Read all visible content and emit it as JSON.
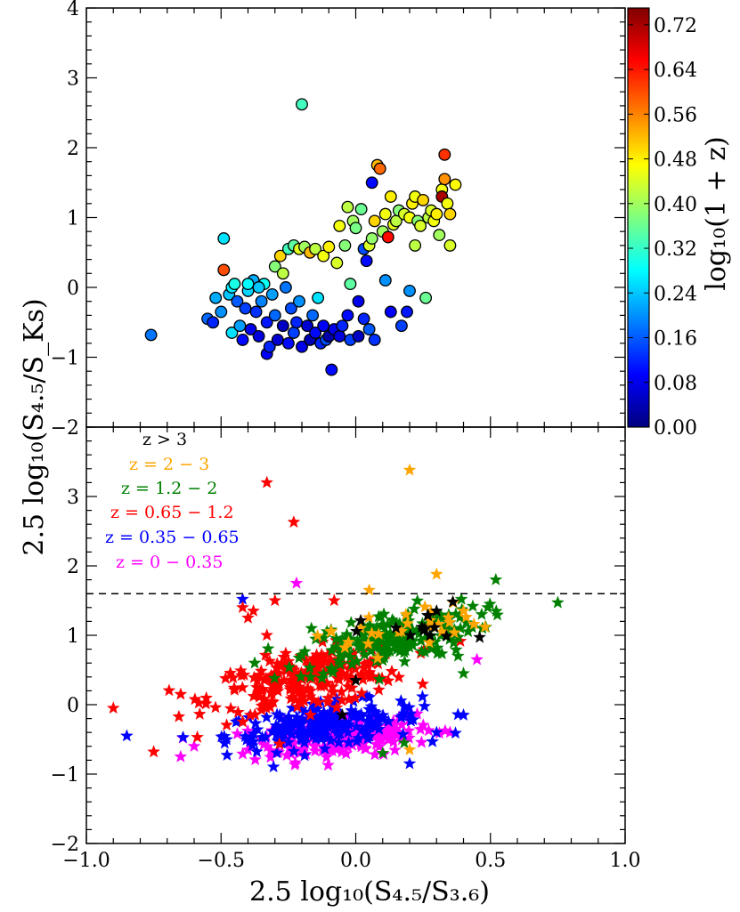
{
  "chart_data": [
    {
      "type": "scatter",
      "panel": "top",
      "marker": "circle",
      "color_by": "log10(1 + z)",
      "xlim": [
        -1.0,
        1.0
      ],
      "ylim": [
        -2,
        4
      ],
      "ytick_labels": [
        "4",
        "3",
        "2",
        "1",
        "0",
        "−1",
        "−2"
      ],
      "ytick_values": [
        4,
        3,
        2,
        1,
        0,
        -1,
        -2
      ],
      "colorbar": {
        "label": "log₁₀(1 + z)",
        "range": [
          0.0,
          0.75
        ],
        "tick_labels": [
          "0.72",
          "0.64",
          "0.56",
          "0.48",
          "0.40",
          "0.32",
          "0.24",
          "0.16",
          "0.08",
          "0.00"
        ],
        "tick_values": [
          0.72,
          0.64,
          0.56,
          0.48,
          0.4,
          0.32,
          0.24,
          0.16,
          0.08,
          0.0
        ],
        "colors": [
          "#00007f",
          "#0000ff",
          "#007fff",
          "#00ffff",
          "#7fff7f",
          "#ffff00",
          "#ff7f00",
          "#ff0000",
          "#7f0000"
        ]
      },
      "points": [
        [
          -0.76,
          -0.68,
          0.18
        ],
        [
          -0.55,
          -0.45,
          0.17
        ],
        [
          -0.53,
          -0.5,
          0.12
        ],
        [
          -0.52,
          -0.15,
          0.22
        ],
        [
          -0.5,
          -0.35,
          0.2
        ],
        [
          -0.49,
          0.7,
          0.26
        ],
        [
          -0.49,
          0.25,
          0.6
        ],
        [
          -0.47,
          -0.1,
          0.24
        ],
        [
          -0.46,
          0.0,
          0.27
        ],
        [
          -0.46,
          -0.65,
          0.26
        ],
        [
          -0.45,
          0.05,
          0.3
        ],
        [
          -0.44,
          -0.2,
          0.16
        ],
        [
          -0.43,
          -0.55,
          0.21
        ],
        [
          -0.42,
          -0.75,
          0.1
        ],
        [
          -0.41,
          -0.3,
          0.14
        ],
        [
          -0.4,
          -0.05,
          0.25
        ],
        [
          -0.39,
          -0.6,
          0.08
        ],
        [
          -0.38,
          0.1,
          0.22
        ],
        [
          -0.37,
          -0.35,
          0.13
        ],
        [
          -0.36,
          -0.7,
          0.07
        ],
        [
          -0.35,
          -0.2,
          0.19
        ],
        [
          -0.34,
          0.05,
          0.29
        ],
        [
          -0.33,
          -0.5,
          0.11
        ],
        [
          -0.33,
          -0.95,
          0.09
        ],
        [
          -0.32,
          -0.85,
          0.12
        ],
        [
          -0.31,
          -0.1,
          0.21
        ],
        [
          -0.3,
          0.3,
          0.38
        ],
        [
          -0.3,
          -0.4,
          0.17
        ],
        [
          -0.29,
          -0.75,
          0.06
        ],
        [
          -0.28,
          0.45,
          0.5
        ],
        [
          -0.27,
          0.2,
          0.42
        ],
        [
          -0.27,
          -0.55,
          0.05
        ],
        [
          -0.26,
          0.0,
          0.18
        ],
        [
          -0.25,
          0.55,
          0.33
        ],
        [
          -0.25,
          -0.8,
          0.1
        ],
        [
          -0.24,
          -0.3,
          0.15
        ],
        [
          -0.23,
          0.6,
          0.35
        ],
        [
          -0.23,
          -0.65,
          0.14
        ],
        [
          -0.22,
          -0.5,
          0.12
        ],
        [
          -0.21,
          0.55,
          0.45
        ],
        [
          -0.21,
          -0.2,
          0.2
        ],
        [
          -0.2,
          2.62,
          0.33
        ],
        [
          -0.2,
          -0.85,
          0.08
        ],
        [
          -0.19,
          0.58,
          0.4
        ],
        [
          -0.18,
          -0.55,
          0.06
        ],
        [
          -0.17,
          0.5,
          0.52
        ],
        [
          -0.17,
          -0.75,
          0.04
        ],
        [
          -0.16,
          -0.4,
          0.17
        ],
        [
          -0.15,
          0.55,
          0.42
        ],
        [
          -0.15,
          -0.65,
          0.1
        ],
        [
          -0.14,
          -0.15,
          0.26
        ],
        [
          -0.13,
          -0.8,
          0.12
        ],
        [
          -0.12,
          0.45,
          0.46
        ],
        [
          -0.12,
          -0.55,
          0.09
        ],
        [
          -0.11,
          -0.75,
          0.15
        ],
        [
          -0.1,
          0.58,
          0.48
        ],
        [
          -0.1,
          -0.7,
          0.03
        ],
        [
          -0.09,
          -1.18,
          0.1
        ],
        [
          -0.08,
          -0.6,
          0.08
        ],
        [
          -0.07,
          0.35,
          0.44
        ],
        [
          -0.06,
          0.88,
          0.46
        ],
        [
          -0.06,
          -0.7,
          0.07
        ],
        [
          -0.05,
          -0.55,
          0.12
        ],
        [
          -0.04,
          0.6,
          0.38
        ],
        [
          -0.03,
          1.15,
          0.42
        ],
        [
          -0.03,
          -0.4,
          0.1
        ],
        [
          -0.02,
          0.05,
          0.35
        ],
        [
          -0.02,
          -0.75,
          0.14
        ],
        [
          -0.01,
          0.95,
          0.4
        ],
        [
          0.0,
          0.85,
          0.37
        ],
        [
          0.01,
          -0.2,
          0.08
        ],
        [
          0.01,
          -0.7,
          0.05
        ],
        [
          0.02,
          1.12,
          0.36
        ],
        [
          0.03,
          0.55,
          0.15
        ],
        [
          0.03,
          -0.45,
          0.12
        ],
        [
          0.04,
          0.38,
          0.1
        ],
        [
          0.05,
          0.6,
          0.44
        ],
        [
          0.05,
          -0.6,
          0.16
        ],
        [
          0.06,
          0.7,
          0.39
        ],
        [
          0.06,
          1.5,
          0.1
        ],
        [
          0.07,
          0.95,
          0.5
        ],
        [
          0.07,
          -0.75,
          0.13
        ],
        [
          0.08,
          1.75,
          0.52
        ],
        [
          0.09,
          1.7,
          0.58
        ],
        [
          0.1,
          0.8,
          0.4
        ],
        [
          0.11,
          1.05,
          0.46
        ],
        [
          0.11,
          0.1,
          0.2
        ],
        [
          0.12,
          0.72,
          0.65
        ],
        [
          0.13,
          -0.35,
          0.09
        ],
        [
          0.13,
          1.3,
          0.48
        ],
        [
          0.14,
          0.9,
          0.45
        ],
        [
          0.15,
          0.95,
          0.42
        ],
        [
          0.16,
          1.1,
          0.38
        ],
        [
          0.17,
          -0.55,
          0.14
        ],
        [
          0.18,
          1.05,
          0.44
        ],
        [
          0.19,
          -0.35,
          0.11
        ],
        [
          0.2,
          1.0,
          0.46
        ],
        [
          0.2,
          -0.05,
          0.2
        ],
        [
          0.21,
          1.2,
          0.48
        ],
        [
          0.22,
          1.3,
          0.46
        ],
        [
          0.23,
          0.95,
          0.38
        ],
        [
          0.24,
          0.88,
          0.44
        ],
        [
          0.25,
          1.25,
          0.5
        ],
        [
          0.26,
          -0.15,
          0.36
        ],
        [
          0.27,
          1.0,
          0.42
        ],
        [
          0.28,
          1.1,
          0.44
        ],
        [
          0.29,
          0.95,
          0.46
        ],
        [
          0.3,
          1.05,
          0.48
        ],
        [
          0.31,
          0.75,
          0.4
        ],
        [
          0.32,
          1.4,
          0.46
        ],
        [
          0.32,
          1.3,
          0.72
        ],
        [
          0.33,
          1.9,
          0.62
        ],
        [
          0.33,
          1.55,
          0.55
        ],
        [
          0.34,
          1.2,
          0.46
        ],
        [
          0.35,
          0.6,
          0.44
        ],
        [
          0.35,
          1.05,
          0.5
        ],
        [
          0.37,
          1.47,
          0.47
        ],
        [
          0.22,
          0.6,
          0.42
        ],
        [
          -0.4,
          0.05,
          0.28
        ],
        [
          -0.36,
          0.0,
          0.24
        ]
      ]
    },
    {
      "type": "scatter",
      "panel": "bottom",
      "marker": "star",
      "xlabel": "2.5 log₁₀(S₄.₅/S₃.₆)",
      "ylabel": "2.5 log₁₀(S₄.₅/S_Ks)",
      "xlim": [
        -1.0,
        1.0
      ],
      "ylim": [
        -2,
        4
      ],
      "xtick_labels": [
        "−1.0",
        "−0.5",
        "0.0",
        "0.5",
        "1.0"
      ],
      "xtick_values": [
        -1.0,
        -0.5,
        0.0,
        0.5,
        1.0
      ],
      "ytick_labels": [
        "3",
        "2",
        "1",
        "0",
        "−1",
        "−2"
      ],
      "ytick_values": [
        3,
        2,
        1,
        0,
        -1,
        -2
      ],
      "threshold_line": 1.6,
      "legend": [
        {
          "label": "z   >   3",
          "color": "#000000"
        },
        {
          "label": "z   = 2 − 3",
          "color": "#ffa500"
        },
        {
          "label": "z   = 1.2 − 2",
          "color": "#008000"
        },
        {
          "label": "z   = 0.65 − 1.2",
          "color": "#ff0000"
        },
        {
          "label": "z   = 0.35 − 0.65",
          "color": "#0000ff"
        },
        {
          "label": "z   = 0 − 0.35",
          "color": "#ff00ff"
        }
      ],
      "series_order": [
        "z = 0 - 0.35",
        "z = 0.35 - 0.65",
        "z = 0.65 - 1.2",
        "z = 1.2 - 2",
        "z = 2 - 3",
        "z > 3"
      ],
      "series": [
        {
          "name": "z = 0 - 0.35",
          "color": "#ff00ff",
          "center": [
            -0.05,
            -0.45
          ],
          "spread": [
            0.17,
            0.22
          ],
          "tilt": 0.35,
          "count": 190,
          "extra": [
            [
              -0.65,
              -0.75
            ],
            [
              -0.6,
              -0.6
            ],
            [
              -0.22,
              1.75
            ],
            [
              0.45,
              0.65
            ],
            [
              0.35,
              -0.4
            ],
            [
              0.2,
              -0.15
            ]
          ]
        },
        {
          "name": "z = 0.35 - 0.65",
          "color": "#0000ff",
          "center": [
            -0.12,
            -0.3
          ],
          "spread": [
            0.18,
            0.22
          ],
          "tilt": 0.4,
          "count": 200,
          "extra": [
            [
              -0.85,
              -0.45
            ],
            [
              -0.42,
              1.52
            ],
            [
              0.4,
              -0.15
            ],
            [
              0.2,
              -0.85
            ],
            [
              0.3,
              -0.4
            ]
          ]
        },
        {
          "name": "z = 0.65 - 1.2",
          "color": "#ff0000",
          "center": [
            -0.18,
            0.35
          ],
          "spread": [
            0.18,
            0.3
          ],
          "tilt": 0.7,
          "count": 230,
          "extra": [
            [
              -0.9,
              -0.05
            ],
            [
              -0.75,
              -0.68
            ],
            [
              -0.65,
              0.15
            ],
            [
              -0.33,
              3.2
            ],
            [
              -0.23,
              2.63
            ],
            [
              -0.42,
              1.4
            ],
            [
              -0.4,
              1.25
            ],
            [
              -0.38,
              1.35
            ],
            [
              -0.3,
              1.5
            ],
            [
              -0.33,
              1.0
            ],
            [
              -0.08,
              1.5
            ]
          ]
        },
        {
          "name": "z = 1.2 - 2",
          "color": "#008000",
          "center": [
            0.12,
            0.95
          ],
          "spread": [
            0.17,
            0.28
          ],
          "tilt": 0.8,
          "count": 190,
          "extra": [
            [
              0.75,
              1.47
            ],
            [
              0.52,
              1.8
            ],
            [
              0.47,
              1.1
            ],
            [
              0.4,
              0.45
            ],
            [
              0.38,
              0.7
            ],
            [
              0.1,
              -0.7
            ],
            [
              0.18,
              -0.55
            ]
          ]
        },
        {
          "name": "z = 2 - 3",
          "color": "#ffa500",
          "center": [
            0.15,
            1.1
          ],
          "spread": [
            0.15,
            0.25
          ],
          "tilt": 0.6,
          "count": 28,
          "extra": [
            [
              0.2,
              3.38
            ],
            [
              0.3,
              1.88
            ],
            [
              0.48,
              1.12
            ],
            [
              0.4,
              1.35
            ],
            [
              0.2,
              -0.65
            ],
            [
              0.05,
              1.65
            ]
          ]
        },
        {
          "name": "z > 3",
          "color": "#000000",
          "center": [
            0.22,
            1.1
          ],
          "spread": [
            0.1,
            0.22
          ],
          "tilt": 0.5,
          "count": 14,
          "extra": [
            [
              0.46,
              0.97
            ],
            [
              0.3,
              1.35
            ],
            [
              -0.05,
              -0.15
            ],
            [
              0.0,
              0.35
            ]
          ]
        }
      ]
    }
  ]
}
